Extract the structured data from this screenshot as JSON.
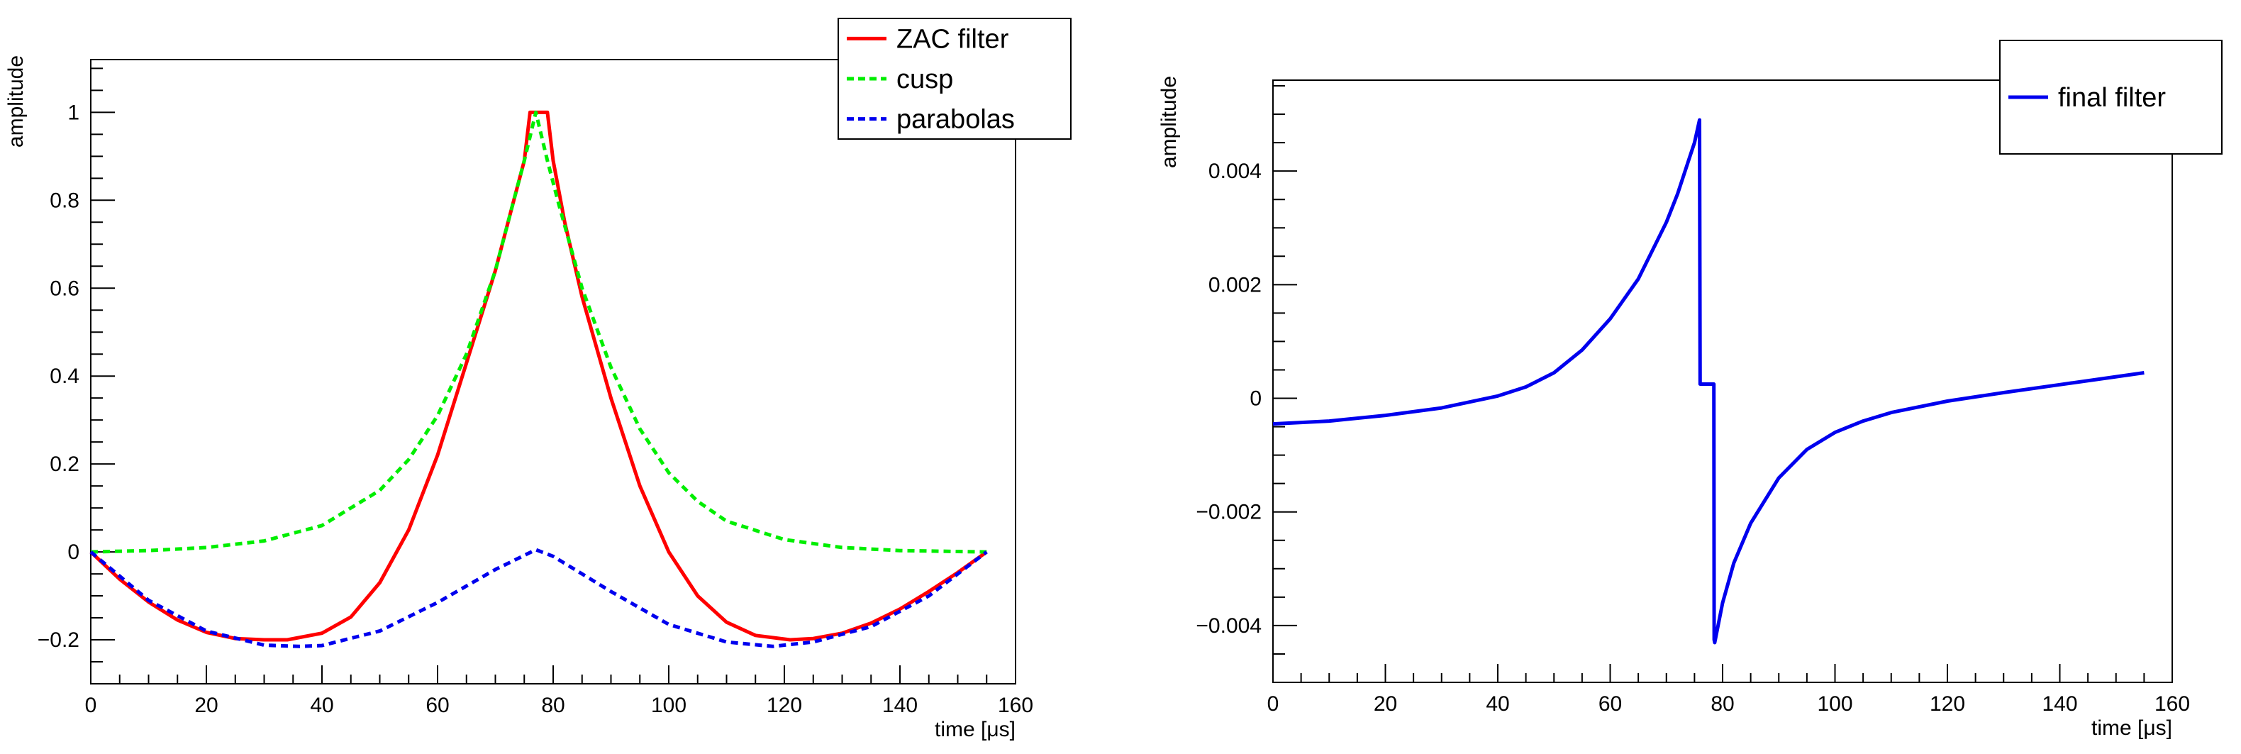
{
  "chart_data": [
    {
      "type": "line",
      "title": "",
      "xlabel": "time [μs]",
      "ylabel": "amplitude",
      "xlim": [
        0,
        160
      ],
      "ylim": [
        -0.3,
        1.12
      ],
      "xticks": [
        0,
        20,
        40,
        60,
        80,
        100,
        120,
        140,
        160
      ],
      "yticks": [
        -0.2,
        0,
        0.2,
        0.4,
        0.6,
        0.8,
        1
      ],
      "ytick_labels": [
        "−0.2",
        "0",
        "0.2",
        "0.4",
        "0.6",
        "0.8",
        "1"
      ],
      "grid": false,
      "legend_position": "top-right",
      "series": [
        {
          "name": "ZAC filter",
          "color": "#ff0000",
          "style": "solid",
          "x": [
            0,
            5,
            10,
            15,
            20,
            25,
            30,
            34,
            40,
            45,
            50,
            55,
            60,
            65,
            70,
            73,
            75,
            76,
            77,
            79,
            80,
            82,
            85,
            90,
            95,
            100,
            105,
            110,
            115,
            121,
            125,
            130,
            135,
            140,
            145,
            150,
            155
          ],
          "y": [
            0,
            -0.062,
            -0.114,
            -0.155,
            -0.183,
            -0.197,
            -0.2,
            -0.2,
            -0.185,
            -0.148,
            -0.07,
            0.05,
            0.22,
            0.43,
            0.64,
            0.79,
            0.89,
            1.0,
            1.0,
            1.0,
            0.89,
            0.75,
            0.58,
            0.35,
            0.15,
            0.0,
            -0.1,
            -0.16,
            -0.19,
            -0.2,
            -0.197,
            -0.185,
            -0.162,
            -0.13,
            -0.09,
            -0.047,
            0
          ]
        },
        {
          "name": "cusp",
          "color": "#00ee00",
          "style": "dashed",
          "x": [
            0,
            10,
            20,
            30,
            40,
            50,
            55,
            60,
            65,
            70,
            73,
            75,
            77,
            79,
            81,
            85,
            90,
            95,
            100,
            105,
            110,
            120,
            130,
            140,
            150,
            155
          ],
          "y": [
            0.0,
            0.003,
            0.01,
            0.025,
            0.06,
            0.14,
            0.21,
            0.31,
            0.45,
            0.64,
            0.79,
            0.89,
            1.0,
            0.89,
            0.79,
            0.6,
            0.42,
            0.28,
            0.18,
            0.115,
            0.07,
            0.028,
            0.01,
            0.003,
            0.001,
            0.0
          ]
        },
        {
          "name": "parabolas",
          "color": "#0000ee",
          "style": "dashed",
          "x": [
            0,
            10,
            20,
            30,
            36,
            40,
            50,
            60,
            70,
            77,
            80,
            90,
            100,
            110,
            118,
            125,
            135,
            145,
            155
          ],
          "y": [
            0,
            -0.11,
            -0.18,
            -0.212,
            -0.215,
            -0.213,
            -0.18,
            -0.115,
            -0.04,
            0.005,
            -0.01,
            -0.09,
            -0.165,
            -0.205,
            -0.215,
            -0.205,
            -0.17,
            -0.1,
            0
          ]
        }
      ]
    },
    {
      "type": "line",
      "title": "",
      "xlabel": "time [μs]",
      "ylabel": "amplitude",
      "xlim": [
        0,
        160
      ],
      "ylim": [
        -0.005,
        0.0056
      ],
      "xticks": [
        0,
        20,
        40,
        60,
        80,
        100,
        120,
        140,
        160
      ],
      "yticks": [
        -0.004,
        -0.002,
        0,
        0.002,
        0.004
      ],
      "ytick_labels": [
        "−0.004",
        "−0.002",
        "0",
        "0.002",
        "0.004"
      ],
      "grid": false,
      "legend_position": "top-right",
      "series": [
        {
          "name": "final filter",
          "color": "#0000ee",
          "style": "solid",
          "x": [
            0,
            10,
            20,
            30,
            40,
            45,
            50,
            55,
            60,
            65,
            68,
            70,
            72,
            74,
            75,
            75.9,
            76,
            76.05,
            78.45,
            78.5,
            78.6,
            80,
            82,
            85,
            90,
            95,
            100,
            105,
            110,
            120,
            130,
            140,
            150,
            155
          ],
          "y": [
            -0.00045,
            -0.0004,
            -0.0003,
            -0.00017,
            4e-05,
            0.0002,
            0.00045,
            0.00085,
            0.0014,
            0.0021,
            0.0027,
            0.0031,
            0.0036,
            0.0042,
            0.0045,
            0.0049,
            0.00025,
            0.00025,
            0.00025,
            -0.00425,
            -0.0043,
            -0.0036,
            -0.0029,
            -0.0022,
            -0.0014,
            -0.0009,
            -0.0006,
            -0.0004,
            -0.00025,
            -5e-05,
            0.0001,
            0.00024,
            0.00038,
            0.00045
          ]
        }
      ]
    }
  ]
}
